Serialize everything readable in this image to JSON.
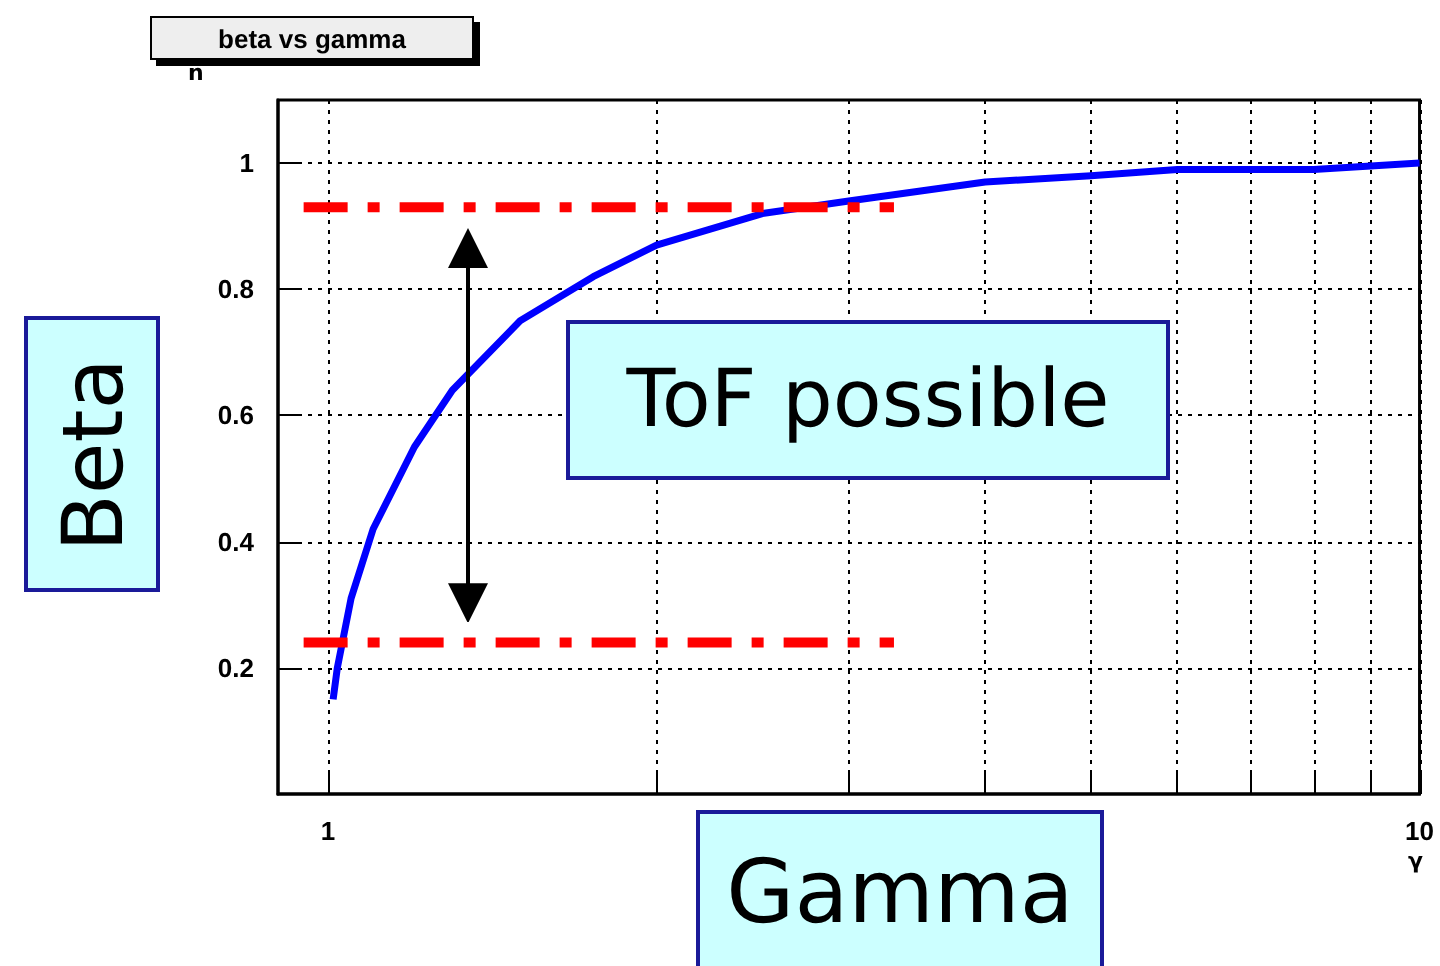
{
  "chart_data": {
    "type": "line",
    "title": "beta vs gamma",
    "xlabel": "Gamma",
    "ylabel": "Beta",
    "annotations": [
      "ñ",
      "γ",
      "ToF possible"
    ],
    "xlim": [
      0.9,
      10
    ],
    "ylim": [
      0,
      1.1
    ],
    "xticks": [
      1,
      {
        "value": 2,
        "label": null
      },
      {
        "value": 3,
        "label": null
      },
      {
        "value": 4,
        "label": null
      },
      {
        "value": 5,
        "label": null
      },
      {
        "value": 6,
        "label": null
      },
      {
        "value": 7,
        "label": null
      },
      {
        "value": 8,
        "label": null
      },
      {
        "value": 9,
        "label": null
      },
      10
    ],
    "yticks": [
      0.2,
      0.4,
      0.6,
      0.8,
      1
    ],
    "log": "x",
    "grid": true,
    "marker": "none",
    "series": [
      {
        "color": "#0000ff",
        "line_style": "solid",
        "x": [
          1.011,
          1.02,
          1.05,
          1.1,
          1.2,
          1.3,
          1.5,
          1.75,
          2,
          2.5,
          3,
          4,
          5,
          6,
          7,
          8,
          10
        ],
        "values": [
          0.15,
          0.2,
          0.31,
          0.42,
          0.55,
          0.64,
          0.75,
          0.82,
          0.87,
          0.92,
          0.94,
          0.97,
          0.98,
          0.99,
          0.99,
          0.99,
          1.0
        ]
      },
      {
        "color": "#ff0000",
        "line_style": "dashed",
        "x": [
          0.95,
          3.3
        ],
        "values": [
          0.93,
          0.93
        ]
      },
      {
        "color": "#ff0000",
        "line_style": "dashed",
        "x": [
          0.95,
          3.3
        ],
        "values": [
          0.24,
          0.24
        ]
      }
    ]
  }
}
